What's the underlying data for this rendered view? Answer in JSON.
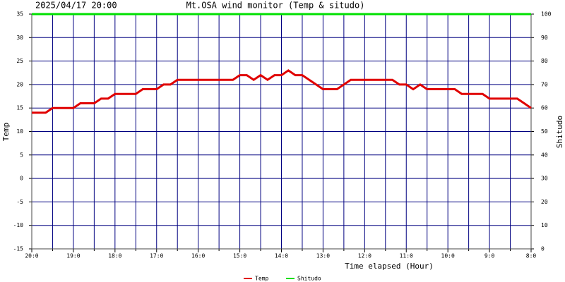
{
  "chart_data": {
    "type": "line",
    "title": "Mt.OSA wind monitor (Temp & situdo)",
    "subtitle": "2025/04/17 20:00",
    "x_label": "Time elapsed (Hour)",
    "y_label": "Temp",
    "y2_label": "Shitudo",
    "x": [
      0,
      10,
      20,
      30,
      40,
      50,
      60,
      70,
      80,
      90,
      100,
      110,
      120,
      130,
      140,
      150,
      160,
      170,
      180,
      190,
      200,
      210,
      220,
      230,
      240,
      250,
      260,
      270,
      280,
      290,
      300,
      310,
      320,
      330,
      340,
      350,
      360,
      370,
      380,
      390,
      400,
      410,
      420,
      430,
      440,
      450,
      460,
      470,
      480,
      490,
      500,
      510,
      520,
      530,
      540,
      550,
      560,
      570,
      580,
      590,
      600,
      610,
      620,
      630,
      640,
      650,
      660,
      670,
      680,
      690,
      700,
      710,
      720
    ],
    "xlim": [
      0,
      720
    ],
    "xticks": [
      {
        "value": 0,
        "label": "20:0"
      },
      {
        "value": 60,
        "label": "19:0"
      },
      {
        "value": 120,
        "label": "18:0"
      },
      {
        "value": 180,
        "label": "17:0"
      },
      {
        "value": 240,
        "label": "16:0"
      },
      {
        "value": 300,
        "label": "15:0"
      },
      {
        "value": 360,
        "label": "14:0"
      },
      {
        "value": 420,
        "label": "13:0"
      },
      {
        "value": 480,
        "label": "12:0"
      },
      {
        "value": 540,
        "label": "11:0"
      },
      {
        "value": 600,
        "label": "10:0"
      },
      {
        "value": 660,
        "label": "9:0"
      },
      {
        "value": 720,
        "label": "8:0"
      }
    ],
    "x_minor_ticks": [
      30,
      90,
      150,
      210,
      270,
      330,
      390,
      450,
      510,
      570,
      630,
      690
    ],
    "ylim": [
      -15,
      35
    ],
    "yticks": [
      -15,
      -10,
      -5,
      0,
      5,
      10,
      15,
      20,
      25,
      30,
      35
    ],
    "y2lim": [
      0,
      100
    ],
    "y2ticks": [
      0,
      10,
      20,
      30,
      40,
      50,
      60,
      70,
      80,
      90,
      100
    ],
    "grid": true,
    "grid_color": "#000080",
    "series": [
      {
        "name": "Temp",
        "color": "#e00000",
        "values": [
          14,
          14,
          14,
          15,
          15,
          15,
          15,
          16,
          16,
          16,
          17,
          17,
          18,
          18,
          18,
          18,
          19,
          19,
          19,
          20,
          20,
          21,
          21,
          21,
          21,
          21,
          21,
          21,
          21,
          21,
          22,
          22,
          21,
          22,
          21,
          22,
          22,
          23,
          22,
          22,
          21,
          20,
          19,
          19,
          19,
          20,
          21,
          21,
          21,
          21,
          21,
          21,
          21,
          20,
          20,
          19,
          20,
          19,
          19,
          19,
          19,
          19,
          18,
          18,
          18,
          18,
          17,
          17,
          17,
          17,
          17,
          16,
          15
        ]
      },
      {
        "name": "Shitudo",
        "color": "#00e000",
        "axis": "y2",
        "values": [
          100,
          100,
          100,
          100,
          100,
          100,
          100,
          100,
          100,
          100,
          100,
          100,
          100,
          100,
          100,
          100,
          100,
          100,
          100,
          100,
          100,
          100,
          100,
          100,
          100,
          100,
          100,
          100,
          100,
          100,
          100,
          100,
          100,
          100,
          100,
          100,
          100,
          100,
          100,
          100,
          100,
          100,
          100,
          100,
          100,
          100,
          100,
          100,
          100,
          100,
          100,
          100,
          100,
          100,
          100,
          100,
          100,
          100,
          100,
          100,
          100,
          100,
          100,
          100,
          100,
          100,
          100,
          100,
          100,
          100,
          100,
          100,
          100
        ]
      }
    ]
  }
}
